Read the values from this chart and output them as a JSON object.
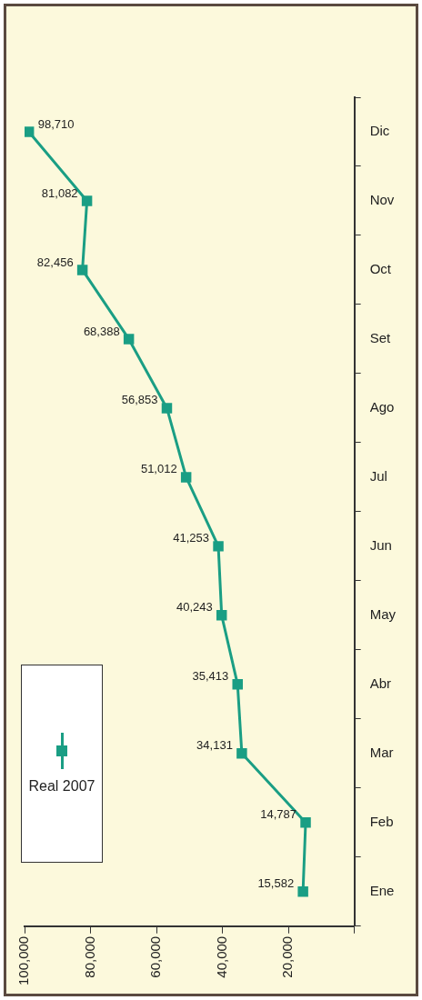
{
  "chart_data": {
    "type": "line",
    "orientation": "horizontal",
    "categories": [
      "Dic",
      "Nov",
      "Oct",
      "Set",
      "Ago",
      "Jul",
      "Jun",
      "May",
      "Abr",
      "Mar",
      "Feb",
      "Ene"
    ],
    "series": [
      {
        "name": "Real 2007",
        "color": "#1a9e84",
        "values": [
          98710,
          81082,
          82456,
          68388,
          56853,
          51012,
          41253,
          40243,
          35413,
          34131,
          14787,
          15582
        ],
        "value_labels": [
          "98,710",
          "81,082",
          "82,456",
          "68,388",
          "56,853",
          "51,012",
          "41,253",
          "40,243",
          "35,413",
          "34,131",
          "14,787",
          "15,582"
        ]
      }
    ],
    "xlim": [
      100000,
      0
    ],
    "xticks": [
      {
        "value": 0,
        "label": null
      },
      {
        "value": 20000,
        "label": "20,000"
      },
      {
        "value": 40000,
        "label": "40,000"
      },
      {
        "value": 60000,
        "label": "60,000"
      },
      {
        "value": 80000,
        "label": "80,000"
      },
      {
        "value": 100000,
        "label": "100,000"
      }
    ],
    "grid": false,
    "legend": "bottom left",
    "marker": "square",
    "line_style": "solid"
  }
}
